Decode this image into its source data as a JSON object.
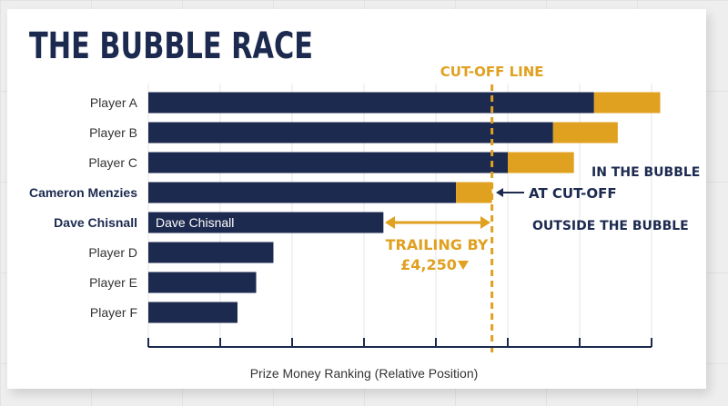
{
  "chart_data": {
    "type": "bar",
    "orientation": "horizontal",
    "stacked": true,
    "title": "THE BUBBLE RACE",
    "xlabel": "Prize Money Ranking (Relative Position)",
    "ylabel": "",
    "xlim": [
      0,
      7
    ],
    "grid": true,
    "categories": [
      "Player A",
      "Player B",
      "Player C",
      "Cameron Menzies",
      "Dave Chisnall",
      "Player D",
      "Player E",
      "Player F"
    ],
    "bold_categories": [
      "Cameron Menzies",
      "Dave Chisnall"
    ],
    "series": [
      {
        "color": "#1c2a4f",
        "values": [
          6.2,
          5.63,
          5.0,
          4.28,
          3.27,
          1.74,
          1.5,
          1.24
        ]
      },
      {
        "color": "#e0a020",
        "values": [
          0.92,
          0.9,
          0.92,
          0.5,
          0,
          0,
          0,
          0
        ]
      }
    ],
    "bar_label": {
      "category": "Dave Chisnall",
      "text": "Dave Chisnall"
    },
    "cutoff": {
      "value": 4.78,
      "label": "CUT-OFF LINE",
      "color": "#e0a020"
    },
    "annotations": {
      "in_bubble": "IN THE BUBBLE",
      "outside_bubble": "OUTSIDE THE BUBBLE",
      "at_cutoff": "AT CUT-OFF",
      "trailing_line1": "TRAILING BY",
      "trailing_line2": "£4,250",
      "trailing_color": "#e0a020",
      "text_color": "#1c2a4f"
    }
  }
}
